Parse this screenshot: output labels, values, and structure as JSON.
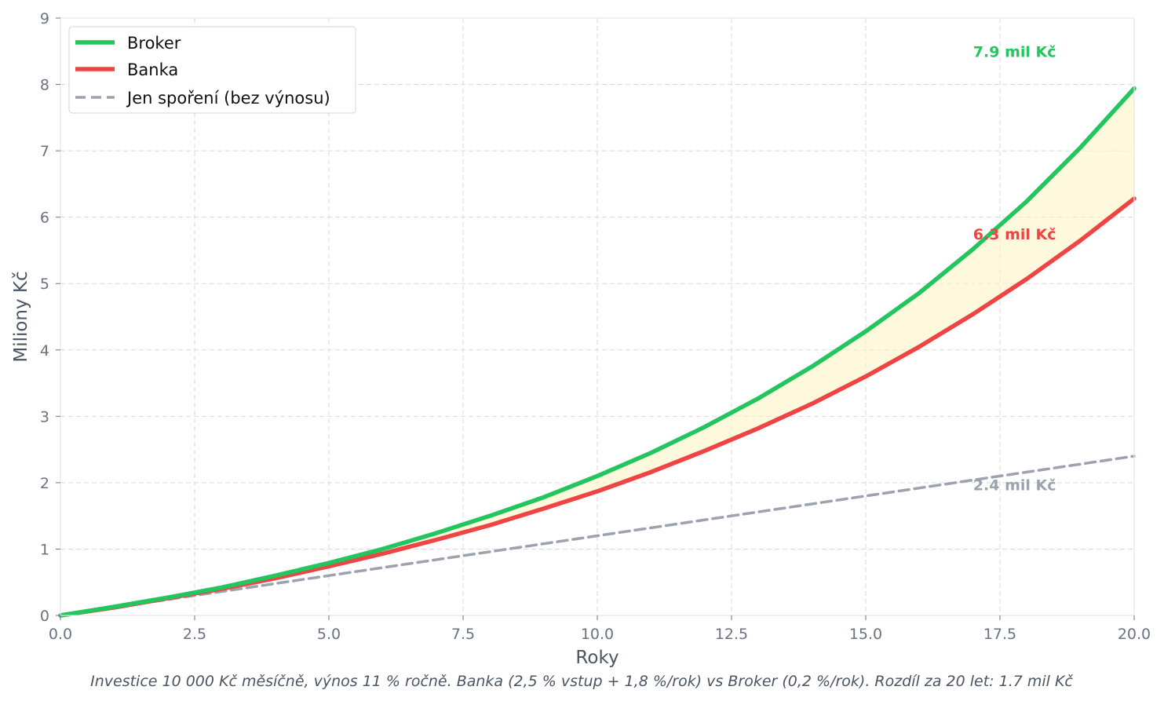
{
  "chart_data": {
    "type": "line",
    "title": "",
    "xlabel": "Roky",
    "ylabel": "Miliony Kč",
    "xlim": [
      0,
      20
    ],
    "ylim": [
      0,
      9
    ],
    "xticks": [
      0,
      2.5,
      5,
      7.5,
      10,
      12.5,
      15,
      17.5,
      20
    ],
    "xtick_labels": [
      "0.0",
      "2.5",
      "5.0",
      "7.5",
      "10.0",
      "12.5",
      "15.0",
      "17.5",
      "20.0"
    ],
    "yticks": [
      0,
      1,
      2,
      3,
      4,
      5,
      6,
      7,
      8,
      9
    ],
    "ytick_labels": [
      "0",
      "1",
      "2",
      "3",
      "4",
      "5",
      "6",
      "7",
      "8",
      "9"
    ],
    "grid": true,
    "legend_position": "top-left",
    "x": [
      0,
      1,
      2,
      3,
      4,
      5,
      6,
      7,
      8,
      9,
      10,
      11,
      12,
      13,
      14,
      15,
      16,
      17,
      18,
      19,
      20
    ],
    "series": [
      {
        "name": "Broker",
        "color": "#22c55e",
        "style": "solid",
        "values": [
          0,
          0.13,
          0.27,
          0.42,
          0.6,
          0.79,
          1.0,
          1.24,
          1.5,
          1.78,
          2.1,
          2.45,
          2.84,
          3.27,
          3.75,
          4.28,
          4.86,
          5.52,
          6.24,
          7.05,
          7.94
        ]
      },
      {
        "name": "Banka",
        "color": "#ef4444",
        "style": "solid",
        "values": [
          0,
          0.12,
          0.26,
          0.4,
          0.56,
          0.74,
          0.93,
          1.14,
          1.36,
          1.61,
          1.87,
          2.16,
          2.48,
          2.82,
          3.19,
          3.6,
          4.05,
          4.54,
          5.07,
          5.65,
          6.28
        ]
      },
      {
        "name": "Jen spoření (bez výnosu)",
        "color": "#9ca3af",
        "style": "dashed",
        "values": [
          0,
          0.12,
          0.24,
          0.36,
          0.48,
          0.6,
          0.72,
          0.84,
          0.96,
          1.08,
          1.2,
          1.32,
          1.44,
          1.56,
          1.68,
          1.8,
          1.92,
          2.04,
          2.16,
          2.28,
          2.4
        ]
      }
    ],
    "fill_between": {
      "upper": "Broker",
      "lower": "Banka",
      "color": "#fef3c7"
    },
    "annotations": [
      {
        "text": "7.9 mil Kč",
        "x": 17,
        "y": 8.5,
        "color": "#22c55e"
      },
      {
        "text": "6.3 mil Kč",
        "x": 17,
        "y": 5.75,
        "color": "#ef4444"
      },
      {
        "text": "2.4 mil Kč",
        "x": 17,
        "y": 1.97,
        "color": "#9ca3af"
      }
    ],
    "caption": "Investice 10 000 Kč měsíčně, výnos 11 % ročně. Banka (2,5 % vstup + 1,8 %/rok) vs Broker (0,2 %/rok). Rozdíl za 20 let: 1.7 mil Kč"
  }
}
